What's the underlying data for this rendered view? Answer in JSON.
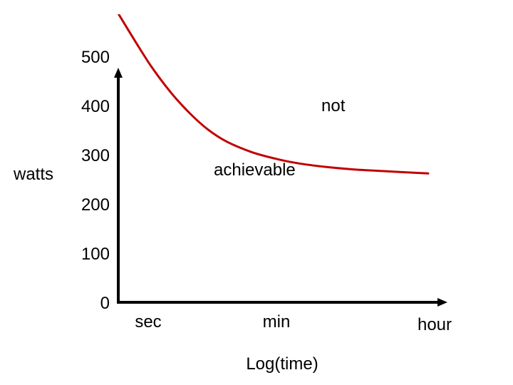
{
  "chart_data": {
    "type": "line",
    "title": "",
    "xlabel": "Log(time)",
    "ylabel": "watts",
    "x_categories": [
      "sec",
      "min",
      "hour"
    ],
    "y_ticks": [
      "0",
      "100",
      "200",
      "300",
      "400",
      "500"
    ],
    "ylim": [
      0,
      500
    ],
    "log_x": true,
    "grid": false,
    "legend": "none",
    "series": [
      {
        "color": "#c00000",
        "points": [
          {
            "x": 0.59,
            "y": 587
          },
          {
            "x": 0.75,
            "y": 530
          },
          {
            "x": 0.9,
            "y": 479
          },
          {
            "x": 1.08,
            "y": 427
          },
          {
            "x": 1.26,
            "y": 384
          },
          {
            "x": 1.43,
            "y": 351
          },
          {
            "x": 1.61,
            "y": 326
          },
          {
            "x": 1.83,
            "y": 306
          },
          {
            "x": 2.04,
            "y": 293
          },
          {
            "x": 2.26,
            "y": 283
          },
          {
            "x": 2.54,
            "y": 275
          },
          {
            "x": 2.8,
            "y": 270
          },
          {
            "x": 3.13,
            "y": 266
          },
          {
            "x": 3.49,
            "y": 262
          }
        ]
      }
    ],
    "annotations": [
      {
        "text": "not",
        "color": "#000000"
      },
      {
        "text": "achievable",
        "color": "#c00000"
      }
    ]
  }
}
